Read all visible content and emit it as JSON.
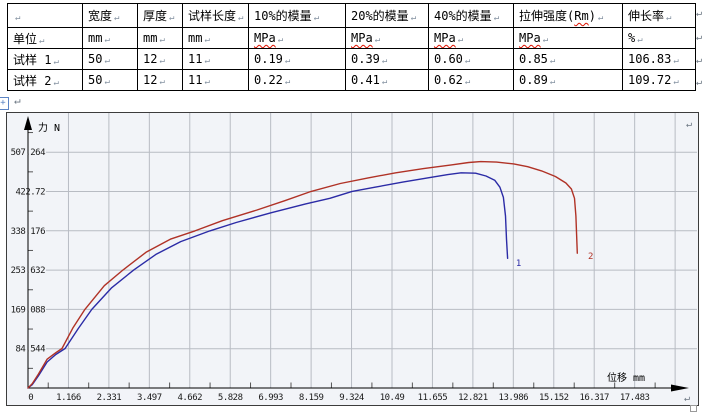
{
  "document": {
    "pilcrow": "↵",
    "anchor_glyph": "+"
  },
  "table": {
    "columns": [
      "",
      "宽度",
      "厚度",
      "试样长度",
      "10%的模量",
      "20%的模量",
      "40%的模量",
      "拉伸强度(Rm)",
      "伸长率"
    ],
    "unit_row": {
      "label": "单位",
      "units": [
        "mm",
        "mm",
        "mm",
        "MPa",
        "MPa",
        "MPa",
        "MPa",
        "%"
      ]
    },
    "rows": [
      {
        "label": "试样 1",
        "values": [
          "50",
          "12",
          "11",
          "0.19",
          "0.39",
          "0.60",
          "0.85",
          "106.83"
        ]
      },
      {
        "label": "试样 2",
        "values": [
          "50",
          "12",
          "11",
          "0.22",
          "0.41",
          "0.62",
          "0.89",
          "109.72"
        ]
      }
    ],
    "misspelled_tokens": [
      "MPa",
      "Rm"
    ]
  },
  "chart_data": {
    "type": "line",
    "title": "",
    "xlabel": "位移 mm",
    "ylabel": "力 N",
    "xlim": [
      0,
      19.3
    ],
    "ylim": [
      0,
      591
    ],
    "grid": true,
    "legend_position": "none",
    "x_ticks": [
      1.166,
      2.331,
      3.497,
      4.662,
      5.828,
      6.993,
      8.159,
      9.324,
      10.49,
      11.655,
      12.821,
      13.986,
      15.152,
      16.317,
      17.483
    ],
    "x_tick_labels": [
      "1.166",
      "2.331",
      "3.497",
      "4.662",
      "5.828",
      "6.993",
      "8.159",
      "9.324",
      "10.49",
      "11.655",
      "12.821",
      "13.986",
      "15.152",
      "16.317",
      "17.483"
    ],
    "extra_unlabeled_x_gridline": 18.649,
    "origin_label": "0",
    "y_ticks": [
      84.544,
      169.088,
      253.632,
      338.176,
      422.72,
      507.264
    ],
    "y_tick_labels": [
      "84.544",
      "169.088",
      "253.632",
      "338.176",
      "422.72",
      "507.264"
    ],
    "colors": {
      "series1": "#2b2ba6",
      "series2": "#b03226",
      "grid": "#b8bcc3",
      "minor_tick": "#555555",
      "axis": "#000000",
      "plot_bg": "#f2f4f8",
      "tick_text": "#1a1a1a"
    },
    "series": [
      {
        "name": "1",
        "label_pos": {
          "x": 14.06,
          "y": 262
        },
        "points": [
          [
            0,
            0
          ],
          [
            0.12,
            7
          ],
          [
            0.3,
            26
          ],
          [
            0.55,
            56
          ],
          [
            0.8,
            72
          ],
          [
            1.07,
            85
          ],
          [
            1.45,
            128
          ],
          [
            1.84,
            169
          ],
          [
            2.4,
            215
          ],
          [
            3.05,
            254
          ],
          [
            3.7,
            288
          ],
          [
            4.4,
            315
          ],
          [
            5.24,
            338
          ],
          [
            6.0,
            356
          ],
          [
            7.0,
            377
          ],
          [
            8.0,
            396
          ],
          [
            8.7,
            408
          ],
          [
            9.34,
            423
          ],
          [
            10.0,
            432
          ],
          [
            10.8,
            443
          ],
          [
            11.6,
            453
          ],
          [
            12.1,
            459
          ],
          [
            12.48,
            463
          ],
          [
            12.9,
            462
          ],
          [
            13.2,
            456
          ],
          [
            13.45,
            447
          ],
          [
            13.6,
            432
          ],
          [
            13.7,
            410
          ],
          [
            13.76,
            370
          ],
          [
            13.79,
            320
          ],
          [
            13.82,
            279
          ]
        ]
      },
      {
        "name": "2",
        "label_pos": {
          "x": 16.14,
          "y": 278
        },
        "points": [
          [
            0,
            0
          ],
          [
            0.12,
            9
          ],
          [
            0.3,
            30
          ],
          [
            0.55,
            62
          ],
          [
            0.8,
            76
          ],
          [
            0.98,
            85
          ],
          [
            1.3,
            130
          ],
          [
            1.64,
            169
          ],
          [
            2.2,
            220
          ],
          [
            2.74,
            254
          ],
          [
            3.4,
            292
          ],
          [
            4.1,
            320
          ],
          [
            4.81,
            338
          ],
          [
            5.6,
            360
          ],
          [
            6.6,
            383
          ],
          [
            7.4,
            403
          ],
          [
            8.16,
            423
          ],
          [
            9.0,
            440
          ],
          [
            9.8,
            452
          ],
          [
            10.6,
            463
          ],
          [
            11.4,
            472
          ],
          [
            12.2,
            480
          ],
          [
            12.7,
            485
          ],
          [
            13.05,
            487
          ],
          [
            13.5,
            486
          ],
          [
            14.0,
            482
          ],
          [
            14.4,
            476
          ],
          [
            14.8,
            467
          ],
          [
            15.2,
            455
          ],
          [
            15.5,
            441
          ],
          [
            15.66,
            428
          ],
          [
            15.75,
            408
          ],
          [
            15.79,
            370
          ],
          [
            15.81,
            330
          ],
          [
            15.83,
            290
          ]
        ]
      }
    ]
  }
}
